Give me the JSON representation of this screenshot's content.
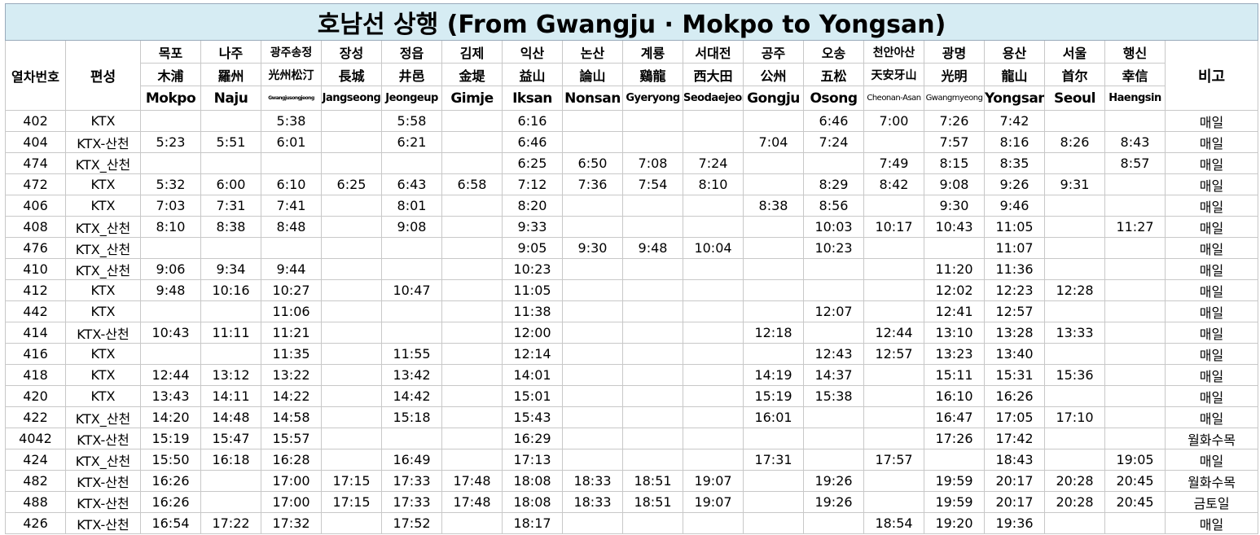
{
  "header": {
    "title": "호남선 상행 (From Gwangju · Mokpo to Yongsan)"
  },
  "columns": {
    "train": "열차번호",
    "type": "편성",
    "remark": "비고"
  },
  "stations": [
    {
      "ko": "목포",
      "hanja": "木浦",
      "en": "Mokpo"
    },
    {
      "ko": "나주",
      "hanja": "羅州",
      "en": "Naju"
    },
    {
      "ko": "광주송정",
      "hanja": "光州松汀",
      "en": "Gwangjusongjeong"
    },
    {
      "ko": "장성",
      "hanja": "長城",
      "en": "Jangseong"
    },
    {
      "ko": "정읍",
      "hanja": "井邑",
      "en": "Jeongeup"
    },
    {
      "ko": "김제",
      "hanja": "金堤",
      "en": "Gimje"
    },
    {
      "ko": "익산",
      "hanja": "益山",
      "en": "Iksan"
    },
    {
      "ko": "논산",
      "hanja": "論山",
      "en": "Nonsan"
    },
    {
      "ko": "계룡",
      "hanja": "鷄龍",
      "en": "Gyeryong"
    },
    {
      "ko": "서대전",
      "hanja": "西大田",
      "en": "Seodaejeon"
    },
    {
      "ko": "공주",
      "hanja": "公州",
      "en": "Gongju"
    },
    {
      "ko": "오송",
      "hanja": "五松",
      "en": "Osong"
    },
    {
      "ko": "천안아산",
      "hanja": "天安牙山",
      "en": "Cheonan-Asan"
    },
    {
      "ko": "광명",
      "hanja": "光明",
      "en": "Gwangmyeong"
    },
    {
      "ko": "용산",
      "hanja": "龍山",
      "en": "Yongsan"
    },
    {
      "ko": "서울",
      "hanja": "首尔",
      "en": "Seoul"
    },
    {
      "ko": "행신",
      "hanja": "幸信",
      "en": "Haengsin"
    }
  ],
  "rows": [
    {
      "train": "402",
      "type": "KTX",
      "times": [
        null,
        null,
        "5:38",
        null,
        "5:58",
        null,
        "6:16",
        null,
        null,
        null,
        null,
        "6:46",
        "7:00",
        "7:26",
        "7:42",
        null,
        null
      ],
      "remark": "매일"
    },
    {
      "train": "404",
      "type": "KTX-산천",
      "times": [
        "5:23",
        "5:51",
        "6:01",
        null,
        "6:21",
        null,
        "6:46",
        null,
        null,
        null,
        "7:04",
        "7:24",
        null,
        "7:57",
        "8:16",
        "8:26",
        "8:43"
      ],
      "remark": "매일"
    },
    {
      "train": "474",
      "type": "KTX_산천",
      "times": [
        null,
        null,
        null,
        null,
        null,
        null,
        "6:25",
        "6:50",
        "7:08",
        "7:24",
        null,
        null,
        "7:49",
        "8:15",
        "8:35",
        null,
        "8:57"
      ],
      "remark": "매일"
    },
    {
      "train": "472",
      "type": "KTX",
      "times": [
        "5:32",
        "6:00",
        "6:10",
        "6:25",
        "6:43",
        "6:58",
        "7:12",
        "7:36",
        "7:54",
        "8:10",
        null,
        "8:29",
        "8:42",
        "9:08",
        "9:26",
        "9:31",
        null
      ],
      "remark": "매일"
    },
    {
      "train": "406",
      "type": "KTX",
      "times": [
        "7:03",
        "7:31",
        "7:41",
        null,
        "8:01",
        null,
        "8:20",
        null,
        null,
        null,
        "8:38",
        "8:56",
        null,
        "9:30",
        "9:46",
        null,
        null
      ],
      "remark": "매일"
    },
    {
      "train": "408",
      "type": "KTX_산천",
      "times": [
        "8:10",
        "8:38",
        "8:48",
        null,
        "9:08",
        null,
        "9:33",
        null,
        null,
        null,
        null,
        "10:03",
        "10:17",
        "10:43",
        "11:05",
        null,
        "11:27"
      ],
      "remark": "매일"
    },
    {
      "train": "476",
      "type": "KTX_산천",
      "times": [
        null,
        null,
        null,
        null,
        null,
        null,
        "9:05",
        "9:30",
        "9:48",
        "10:04",
        null,
        "10:23",
        null,
        null,
        "11:07",
        null,
        null
      ],
      "remark": "매일"
    },
    {
      "train": "410",
      "type": "KTX_산천",
      "times": [
        "9:06",
        "9:34",
        "9:44",
        null,
        null,
        null,
        "10:23",
        null,
        null,
        null,
        null,
        null,
        null,
        "11:20",
        "11:36",
        null,
        null
      ],
      "remark": "매일"
    },
    {
      "train": "412",
      "type": "KTX",
      "times": [
        "9:48",
        "10:16",
        "10:27",
        null,
        "10:47",
        null,
        "11:05",
        null,
        null,
        null,
        null,
        null,
        null,
        "12:02",
        "12:23",
        "12:28",
        null
      ],
      "remark": "매일"
    },
    {
      "train": "442",
      "type": "KTX",
      "times": [
        null,
        null,
        "11:06",
        null,
        null,
        null,
        "11:38",
        null,
        null,
        null,
        null,
        "12:07",
        null,
        "12:41",
        "12:57",
        null,
        null
      ],
      "remark": "매일"
    },
    {
      "train": "414",
      "type": "KTX-산천",
      "times": [
        "10:43",
        "11:11",
        "11:21",
        null,
        null,
        null,
        "12:00",
        null,
        null,
        null,
        "12:18",
        null,
        "12:44",
        "13:10",
        "13:28",
        "13:33",
        null
      ],
      "remark": "매일"
    },
    {
      "train": "416",
      "type": "KTX",
      "times": [
        null,
        null,
        "11:35",
        null,
        "11:55",
        null,
        "12:14",
        null,
        null,
        null,
        null,
        "12:43",
        "12:57",
        "13:23",
        "13:40",
        null,
        null
      ],
      "remark": "매일"
    },
    {
      "train": "418",
      "type": "KTX",
      "times": [
        "12:44",
        "13:12",
        "13:22",
        null,
        "13:42",
        null,
        "14:01",
        null,
        null,
        null,
        "14:19",
        "14:37",
        null,
        "15:11",
        "15:31",
        "15:36",
        null
      ],
      "remark": "매일"
    },
    {
      "train": "420",
      "type": "KTX",
      "times": [
        "13:43",
        "14:11",
        "14:22",
        null,
        "14:42",
        null,
        "15:01",
        null,
        null,
        null,
        "15:19",
        "15:38",
        null,
        "16:10",
        "16:26",
        null,
        null
      ],
      "remark": "매일"
    },
    {
      "train": "422",
      "type": "KTX_산천",
      "times": [
        "14:20",
        "14:48",
        "14:58",
        null,
        "15:18",
        null,
        "15:43",
        null,
        null,
        null,
        "16:01",
        null,
        null,
        "16:47",
        "17:05",
        "17:10",
        null
      ],
      "remark": "매일"
    },
    {
      "train": "4042",
      "type": "KTX-산천",
      "times": [
        "15:19",
        "15:47",
        "15:57",
        null,
        null,
        null,
        "16:29",
        null,
        null,
        null,
        null,
        null,
        null,
        "17:26",
        "17:42",
        null,
        null
      ],
      "remark": "월화수목"
    },
    {
      "train": "424",
      "type": "KTX_산천",
      "times": [
        "15:50",
        "16:18",
        "16:28",
        null,
        "16:49",
        null,
        "17:13",
        null,
        null,
        null,
        "17:31",
        null,
        "17:57",
        null,
        "18:43",
        null,
        "19:05"
      ],
      "remark": "매일"
    },
    {
      "train": "482",
      "type": "KTX-산천",
      "times": [
        "16:26",
        null,
        "17:00",
        "17:15",
        "17:33",
        "17:48",
        "18:08",
        "18:33",
        "18:51",
        "19:07",
        null,
        "19:26",
        null,
        "19:59",
        "20:17",
        "20:28",
        "20:45"
      ],
      "remark": "월화수목"
    },
    {
      "train": "488",
      "type": "KTX-산천",
      "times": [
        "16:26",
        null,
        "17:00",
        "17:15",
        "17:33",
        "17:48",
        "18:08",
        "18:33",
        "18:51",
        "19:07",
        null,
        "19:26",
        null,
        "19:59",
        "20:17",
        "20:28",
        "20:45"
      ],
      "remark": "금토일"
    },
    {
      "train": "426",
      "type": "KTX-산천",
      "times": [
        "16:54",
        "17:22",
        "17:32",
        null,
        "17:52",
        null,
        "18:17",
        null,
        null,
        null,
        null,
        null,
        "18:54",
        "19:20",
        "19:36",
        null,
        null
      ],
      "remark": "매일"
    }
  ]
}
